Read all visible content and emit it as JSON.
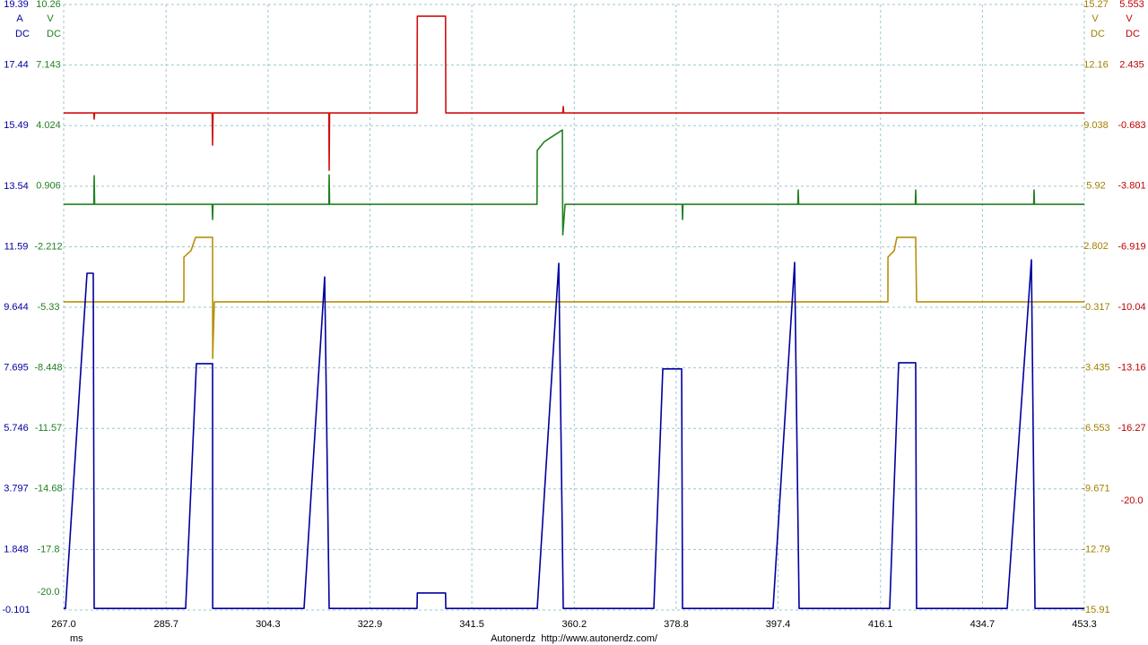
{
  "chart_data": {
    "type": "line",
    "x_label": "ms",
    "footer": "Autonerdz  http://www.autonerdz.com/",
    "grid": true,
    "xlim": [
      267.0,
      453.3
    ],
    "xticks": [
      {
        "value": 267.0,
        "label": "267.0"
      },
      285.7,
      304.3,
      322.9,
      341.5,
      360.2,
      378.8,
      397.4,
      416.1,
      434.7,
      453.3
    ],
    "axes": [
      {
        "unit": "A",
        "coupling": "DC",
        "side": "left",
        "color": "#0000a0",
        "ylim": [
          -0.101,
          19.39
        ],
        "yticks": [
          19.39,
          17.44,
          15.49,
          13.54,
          11.59,
          9.644,
          7.695,
          5.746,
          3.797,
          1.848,
          -0.101
        ]
      },
      {
        "unit": "V",
        "coupling": "DC",
        "side": "left",
        "color": "#208020",
        "ylim": [
          -20.92,
          10.26
        ],
        "yticks": [
          10.26,
          7.143,
          4.024,
          0.906,
          -2.212,
          -5.33,
          -8.448,
          -11.57,
          -14.68,
          -17.8,
          {
            "value": -20.0,
            "label": "-20.0"
          }
        ]
      },
      {
        "unit": "V",
        "coupling": "DC",
        "side": "right",
        "color": "#a08000",
        "ylim": [
          -15.91,
          15.27
        ],
        "yticks": [
          15.27,
          12.16,
          9.038,
          5.92,
          2.802,
          -0.317,
          -3.435,
          -6.553,
          -9.671,
          -12.79,
          -15.91
        ]
      },
      {
        "unit": "V",
        "coupling": "DC",
        "side": "right",
        "color": "#c00000",
        "ylim": [
          -25.63,
          5.553
        ],
        "yticks": [
          5.553,
          2.435,
          -0.683,
          -3.801,
          -6.919,
          -10.04,
          -13.16,
          -16.27,
          {
            "value": -20.0,
            "label": "-20.0"
          }
        ]
      }
    ],
    "series": [
      {
        "axis": 3,
        "color": "#d01010",
        "x": [
          267.0,
          272.5,
          272.57,
          272.65,
          294.1,
          294.18,
          294.26,
          315.4,
          315.46,
          315.54,
          331.5,
          331.55,
          336.7,
          336.75,
          358.1,
          358.19,
          358.27,
          453.3
        ],
        "values": [
          -0.03,
          -0.03,
          -0.35,
          -0.03,
          -0.03,
          -1.69,
          -0.03,
          -0.03,
          -2.98,
          -0.03,
          -0.03,
          4.95,
          4.95,
          -0.03,
          -0.03,
          0.3,
          -0.03,
          -0.03
        ]
      },
      {
        "axis": 1,
        "color": "#208020",
        "x": [
          267.0,
          272.5,
          272.57,
          272.65,
          294.1,
          294.18,
          294.26,
          315.4,
          315.46,
          315.54,
          353.4,
          353.44,
          354.75,
          358.03,
          358.1,
          358.52,
          379.9,
          379.96,
          380.04,
          401.0,
          401.08,
          401.16,
          422.45,
          422.52,
          422.6,
          444.05,
          444.13,
          444.21,
          453.3
        ],
        "values": [
          -0.03,
          -0.03,
          1.44,
          -0.03,
          -0.03,
          -0.81,
          -0.03,
          -0.03,
          1.48,
          -0.03,
          -0.03,
          2.74,
          3.2,
          3.8,
          -1.6,
          -0.03,
          -0.03,
          -0.81,
          -0.03,
          -0.03,
          0.71,
          -0.03,
          -0.03,
          0.71,
          -0.03,
          -0.03,
          0.71,
          -0.03,
          -0.03
        ]
      },
      {
        "axis": 2,
        "color": "#b8900b",
        "x": [
          267.0,
          288.94,
          288.95,
          290.25,
          291.07,
          294.18,
          294.2,
          294.5,
          417.45,
          417.46,
          418.6,
          419.09,
          422.52,
          422.68,
          453.3
        ],
        "values": [
          -0.04,
          -0.04,
          2.26,
          2.6,
          3.28,
          3.28,
          -2.95,
          -0.04,
          -0.04,
          2.26,
          2.6,
          3.28,
          3.28,
          -0.04,
          -0.04
        ]
      },
      {
        "axis": 0,
        "color": "#0000a0",
        "x": [
          267.0,
          267.33,
          271.26,
          272.4,
          272.57,
          289.26,
          291.23,
          294.18,
          294.2,
          310.87,
          314.64,
          315.46,
          331.5,
          331.55,
          336.7,
          336.75,
          353.44,
          357.37,
          358.19,
          374.72,
          376.36,
          379.8,
          379.96,
          396.49,
          400.42,
          401.24,
          417.77,
          419.41,
          422.52,
          422.68,
          439.22,
          443.64,
          444.3,
          453.3
        ],
        "values": [
          -0.05,
          -0.05,
          10.74,
          10.74,
          -0.05,
          -0.05,
          7.83,
          7.83,
          -0.05,
          -0.05,
          10.62,
          -0.05,
          -0.05,
          0.45,
          0.45,
          -0.05,
          -0.05,
          11.06,
          -0.05,
          -0.05,
          7.66,
          7.66,
          -0.05,
          -0.05,
          11.09,
          -0.05,
          -0.05,
          7.86,
          7.86,
          -0.05,
          -0.05,
          11.17,
          -0.05,
          -0.05
        ]
      }
    ]
  }
}
